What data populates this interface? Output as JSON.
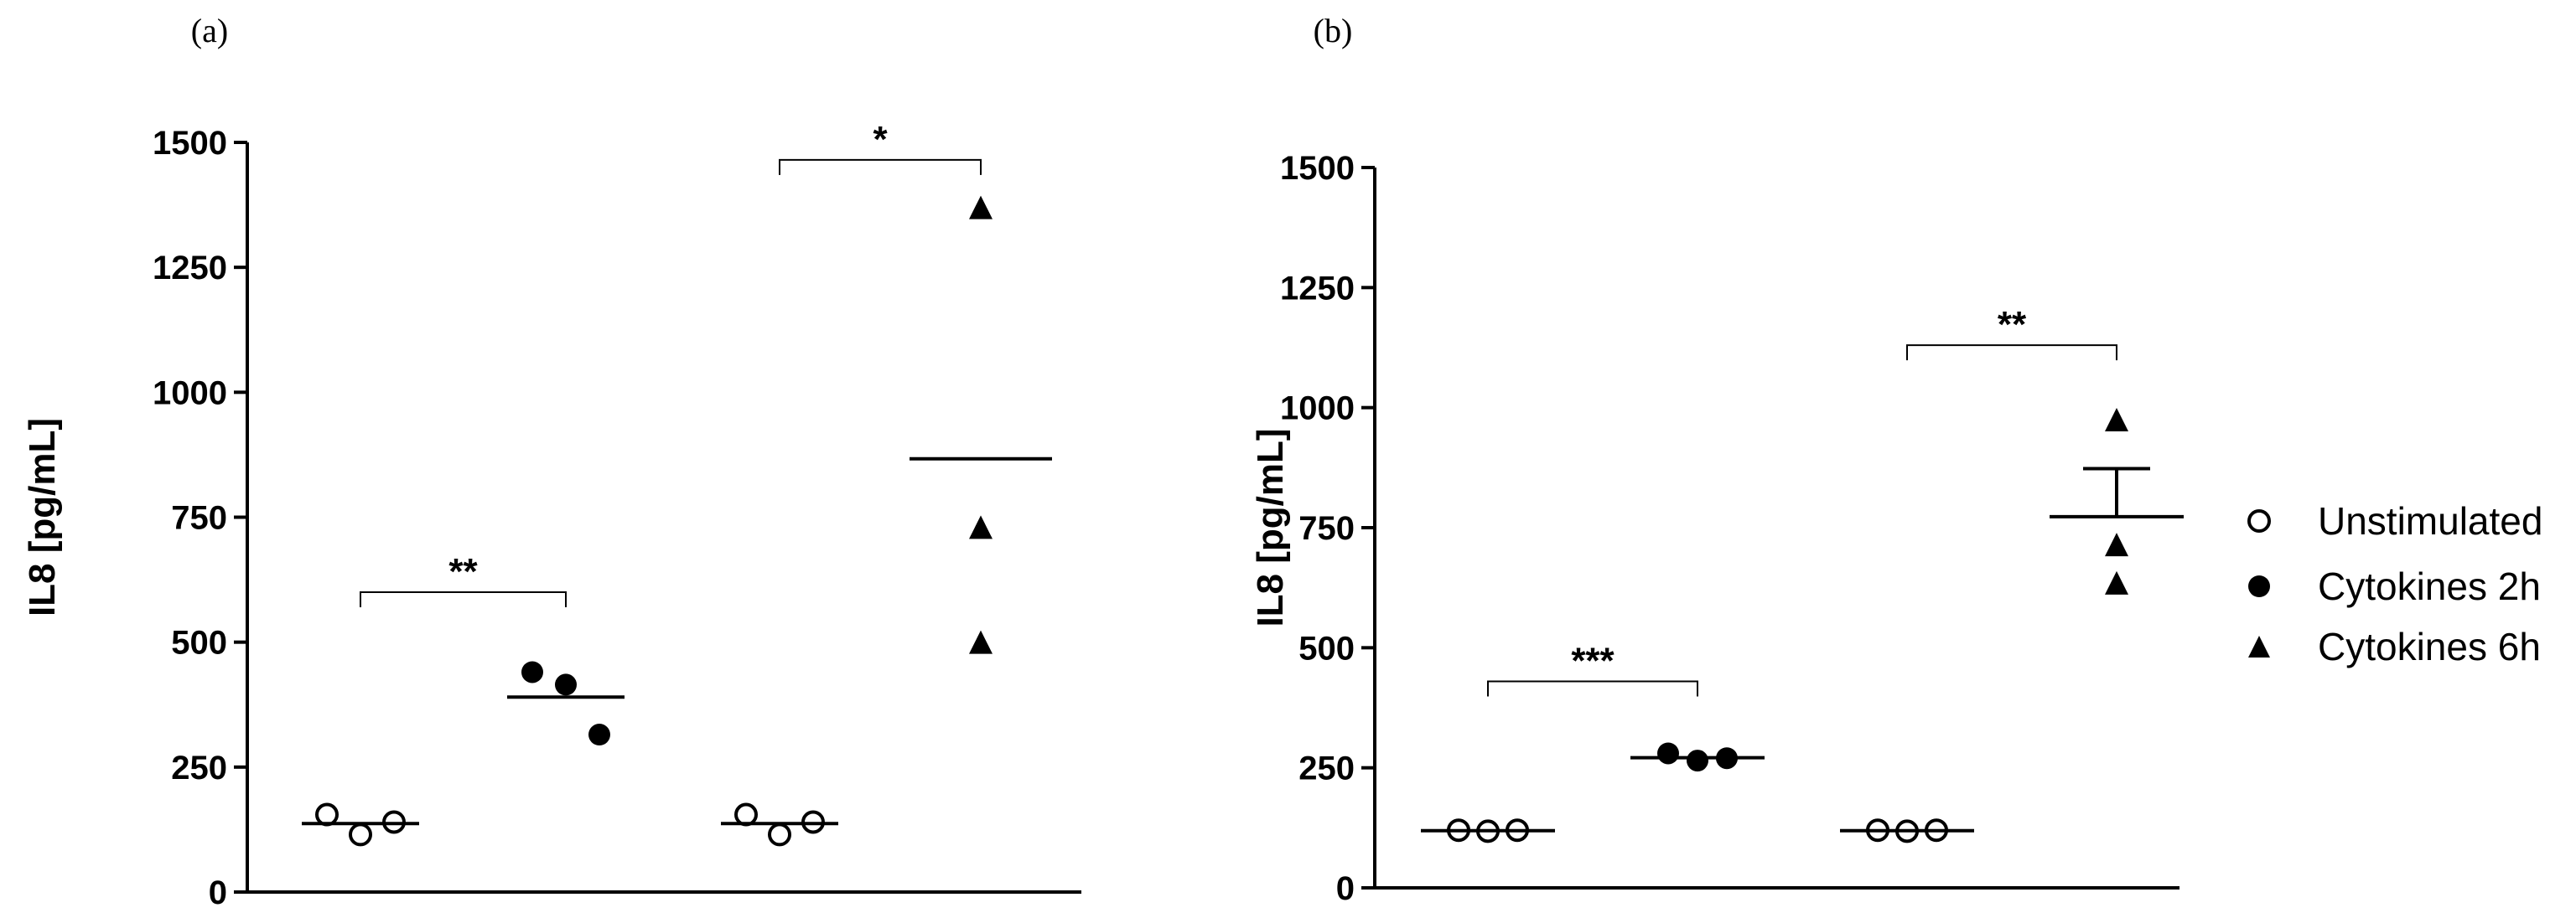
{
  "colors": {
    "ink": "#000000",
    "background": "#ffffff"
  },
  "legend": {
    "placement": "right",
    "items": [
      {
        "label": "Unstimulated",
        "marker": "open-circle"
      },
      {
        "label": "Cytokines 2h",
        "marker": "filled-circle"
      },
      {
        "label": "Cytokines 6h",
        "marker": "filled-triangle"
      }
    ]
  },
  "chart_data": [
    {
      "panel": "(a)",
      "type": "scatter",
      "xlabel": "",
      "ylabel": "IL8 [pg/mL]",
      "ylim": [
        0,
        1500
      ],
      "yticks": [
        0,
        250,
        500,
        750,
        1000,
        1250,
        1500
      ],
      "grid": false,
      "groups": [
        {
          "series": "Unstimulated",
          "marker": "open-circle",
          "values": [
            155,
            115,
            140
          ],
          "mean": 137
        },
        {
          "series": "Cytokines 2h",
          "marker": "filled-circle",
          "values": [
            440,
            415,
            315
          ],
          "mean": 390
        },
        {
          "series": "Unstimulated",
          "marker": "open-circle",
          "values": [
            155,
            115,
            140
          ],
          "mean": 137
        },
        {
          "series": "Cytokines 6h",
          "marker": "filled-triangle",
          "values": [
            1370,
            730,
            500
          ],
          "mean": 867
        }
      ],
      "significance": [
        {
          "from": 0,
          "to": 1,
          "label": "**",
          "y": 600
        },
        {
          "from": 2,
          "to": 3,
          "label": "*",
          "y": 1465
        }
      ]
    },
    {
      "panel": "(b)",
      "type": "scatter",
      "xlabel": "",
      "ylabel": "IL8 [pg/mL]",
      "ylim": [
        0,
        1500
      ],
      "yticks": [
        0,
        250,
        500,
        750,
        1000,
        1250,
        1500
      ],
      "grid": false,
      "groups": [
        {
          "series": "Unstimulated",
          "marker": "open-circle",
          "values": [
            120,
            118,
            120
          ],
          "mean": 119
        },
        {
          "series": "Cytokines 2h",
          "marker": "filled-circle",
          "values": [
            280,
            265,
            270
          ],
          "mean": 271
        },
        {
          "series": "Unstimulated",
          "marker": "open-circle",
          "values": [
            120,
            118,
            120
          ],
          "mean": 119
        },
        {
          "series": "Cytokines 6h",
          "marker": "filled-triangle",
          "values": [
            975,
            715,
            635
          ],
          "mean": 773,
          "sem": 100
        }
      ],
      "significance": [
        {
          "from": 0,
          "to": 1,
          "label": "***",
          "y": 430
        },
        {
          "from": 2,
          "to": 3,
          "label": "**",
          "y": 1130
        }
      ]
    }
  ]
}
